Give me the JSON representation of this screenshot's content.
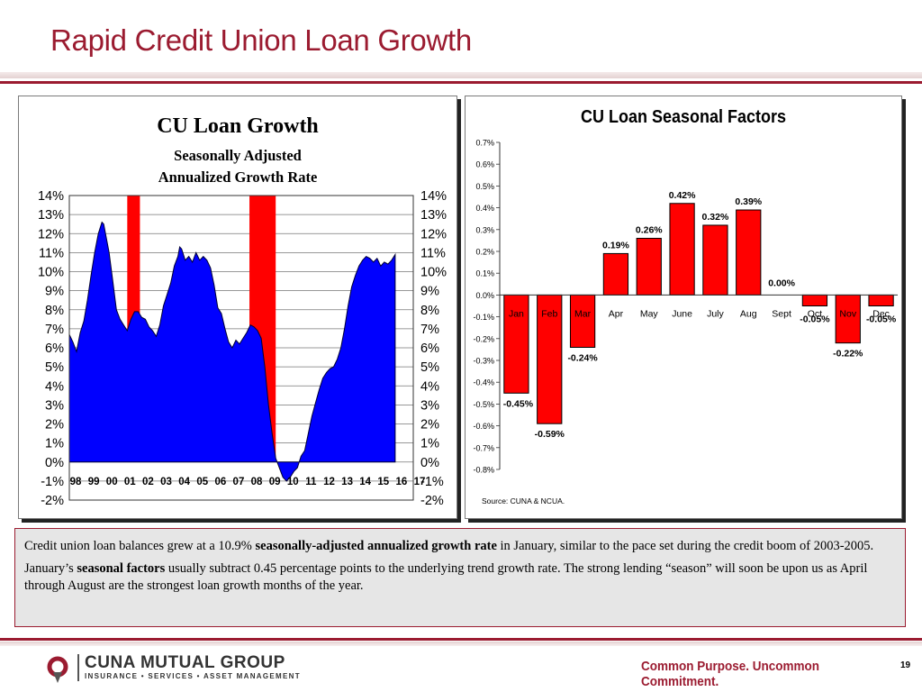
{
  "slide": {
    "title": "Rapid Credit Union Loan Growth",
    "page_number": "19",
    "tagline": "Common Purpose. Uncommon Commitment.",
    "brand_name": "CUNA MUTUAL GROUP",
    "brand_sub": "INSURANCE • SERVICES • ASSET MANAGEMENT",
    "accent_color": "#9b1b30"
  },
  "text": {
    "p1_a": "Credit union loan balances grew at a 10.9% ",
    "p1_b": "seasonally-adjusted annualized growth rate",
    "p1_c": " in January, similar to the pace set during the credit boom of 2003-2005.",
    "p2_a": "January’s ",
    "p2_b": "seasonal factors",
    "p2_c": " usually subtract 0.45 percentage points to the underlying trend growth rate. The strong lending “season” will soon be upon us as April through August are the strongest loan growth months of the year."
  },
  "chart_data": [
    {
      "type": "area",
      "title": "CU Loan Growth",
      "subtitle_line1": "Seasonally Adjusted",
      "subtitle_line2": "Annualized Growth Rate",
      "ylim": [
        -2,
        14
      ],
      "yticks": [
        "14%",
        "13%",
        "12%",
        "11%",
        "10%",
        "9%",
        "8%",
        "7%",
        "6%",
        "5%",
        "4%",
        "3%",
        "2%",
        "1%",
        "0%",
        "-1%",
        "-2%"
      ],
      "xticks": [
        "98",
        "99",
        "00",
        "01",
        "02",
        "03",
        "04",
        "05",
        "06",
        "07",
        "08",
        "09",
        "10",
        "11",
        "12",
        "13",
        "14",
        "15",
        "16",
        "17"
      ],
      "fill_color": "#0000ff",
      "recession_color": "#ff0000",
      "recessions": [
        [
          2001.2,
          2001.9
        ],
        [
          2007.95,
          2009.4
        ]
      ],
      "series": [
        {
          "values": [
            [
              1998.0,
              6.7
            ],
            [
              1998.2,
              6.3
            ],
            [
              1998.4,
              5.8
            ],
            [
              1998.6,
              6.8
            ],
            [
              1998.8,
              7.4
            ],
            [
              1999.0,
              8.5
            ],
            [
              1999.2,
              9.8
            ],
            [
              1999.4,
              11.0
            ],
            [
              1999.6,
              12.0
            ],
            [
              1999.8,
              12.6
            ],
            [
              1999.9,
              12.5
            ],
            [
              2000.0,
              12.0
            ],
            [
              2000.2,
              11.0
            ],
            [
              2000.4,
              9.5
            ],
            [
              2000.6,
              8.0
            ],
            [
              2000.8,
              7.5
            ],
            [
              2001.0,
              7.2
            ],
            [
              2001.2,
              6.9
            ],
            [
              2001.4,
              7.5
            ],
            [
              2001.6,
              7.9
            ],
            [
              2001.8,
              7.9
            ],
            [
              2002.0,
              7.6
            ],
            [
              2002.2,
              7.5
            ],
            [
              2002.4,
              7.1
            ],
            [
              2002.6,
              6.9
            ],
            [
              2002.8,
              6.6
            ],
            [
              2003.0,
              7.2
            ],
            [
              2003.2,
              8.2
            ],
            [
              2003.4,
              8.8
            ],
            [
              2003.6,
              9.4
            ],
            [
              2003.8,
              10.3
            ],
            [
              2004.0,
              10.8
            ],
            [
              2004.1,
              11.3
            ],
            [
              2004.2,
              11.2
            ],
            [
              2004.4,
              10.6
            ],
            [
              2004.6,
              10.8
            ],
            [
              2004.8,
              10.5
            ],
            [
              2005.0,
              11.0
            ],
            [
              2005.2,
              10.6
            ],
            [
              2005.4,
              10.8
            ],
            [
              2005.6,
              10.6
            ],
            [
              2005.8,
              10.2
            ],
            [
              2006.0,
              9.3
            ],
            [
              2006.2,
              8.1
            ],
            [
              2006.4,
              7.8
            ],
            [
              2006.6,
              7.0
            ],
            [
              2006.8,
              6.3
            ],
            [
              2007.0,
              6.0
            ],
            [
              2007.2,
              6.4
            ],
            [
              2007.4,
              6.2
            ],
            [
              2007.6,
              6.5
            ],
            [
              2007.8,
              6.8
            ],
            [
              2008.0,
              7.2
            ],
            [
              2008.2,
              7.1
            ],
            [
              2008.4,
              6.9
            ],
            [
              2008.6,
              6.5
            ],
            [
              2008.8,
              5.0
            ],
            [
              2009.0,
              3.0
            ],
            [
              2009.2,
              1.5
            ],
            [
              2009.4,
              0.2
            ],
            [
              2009.6,
              -0.3
            ],
            [
              2009.8,
              -0.8
            ],
            [
              2010.0,
              -1.0
            ],
            [
              2010.2,
              -0.8
            ],
            [
              2010.4,
              -0.5
            ],
            [
              2010.6,
              -0.3
            ],
            [
              2010.8,
              0.3
            ],
            [
              2011.0,
              0.6
            ],
            [
              2011.2,
              1.5
            ],
            [
              2011.4,
              2.4
            ],
            [
              2011.6,
              3.1
            ],
            [
              2011.8,
              3.8
            ],
            [
              2012.0,
              4.4
            ],
            [
              2012.2,
              4.7
            ],
            [
              2012.4,
              4.9
            ],
            [
              2012.6,
              5.0
            ],
            [
              2012.8,
              5.4
            ],
            [
              2013.0,
              6.0
            ],
            [
              2013.2,
              7.0
            ],
            [
              2013.4,
              8.2
            ],
            [
              2013.6,
              9.2
            ],
            [
              2013.8,
              9.8
            ],
            [
              2014.0,
              10.3
            ],
            [
              2014.2,
              10.6
            ],
            [
              2014.4,
              10.8
            ],
            [
              2014.6,
              10.7
            ],
            [
              2014.8,
              10.5
            ],
            [
              2015.0,
              10.7
            ],
            [
              2015.2,
              10.3
            ],
            [
              2015.4,
              10.5
            ],
            [
              2015.6,
              10.4
            ],
            [
              2015.8,
              10.6
            ],
            [
              2016.0,
              10.9
            ]
          ]
        }
      ]
    },
    {
      "type": "bar",
      "title": "CU Loan Seasonal Factors",
      "categories": [
        "Jan",
        "Feb",
        "Mar",
        "Apr",
        "May",
        "June",
        "July",
        "Aug",
        "Sept",
        "Oct",
        "Nov",
        "Dec"
      ],
      "values": [
        -0.45,
        -0.59,
        -0.24,
        0.19,
        0.26,
        0.42,
        0.32,
        0.39,
        0.0,
        -0.05,
        -0.22,
        -0.05
      ],
      "data_labels": [
        "-0.45%",
        "-0.59%",
        "-0.24%",
        "0.19%",
        "0.26%",
        "0.42%",
        "0.32%",
        "0.39%",
        "0.00%",
        "-0.05%",
        "-0.22%",
        "-0.05%"
      ],
      "ylim": [
        -0.8,
        0.7
      ],
      "yticks": [
        "0.7%",
        "0.6%",
        "0.5%",
        "0.4%",
        "0.3%",
        "0.2%",
        "0.1%",
        "0.0%",
        "-0.1%",
        "-0.2%",
        "-0.3%",
        "-0.4%",
        "-0.5%",
        "-0.6%",
        "-0.7%",
        "-0.8%"
      ],
      "bar_color": "#ff0000",
      "source": "Source: CUNA & NCUA."
    }
  ]
}
